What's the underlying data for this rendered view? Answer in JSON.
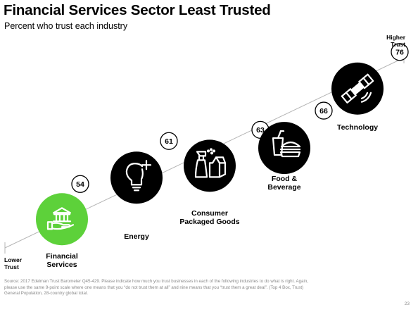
{
  "slide": {
    "title": "Financial Services Sector Least Trusted",
    "subtitle": "Percent who trust each industry",
    "axis_high": "Higher\nTrust",
    "axis_low": "Lower\nTrust",
    "source": "Source: 2017 Edelman Trust Barometer Q45-429. Please indicate how much you trust businesses in each of the following industries to do what is right. Again, please use the same 9-point scale where one means that you “do not trust them at all” and nine means that you “trust them a great deal”. (Top 4 Box, Trust) General Population, 28-country global total.",
    "page_number": "23"
  },
  "colors": {
    "highlight": "#5dd13a",
    "circle": "#000000",
    "line": "#b5b5b5"
  },
  "chart_data": {
    "type": "scatter",
    "title": "Financial Services Sector Least Trusted",
    "subtitle": "Percent who trust each industry",
    "categories": [
      "Financial\nServices",
      "Energy",
      "Consumer\nPackaged Goods",
      "Food &\nBeverage",
      "Technology"
    ],
    "values": [
      54,
      61,
      63,
      66,
      76
    ],
    "icons": [
      "bank-hand-icon",
      "lightbulb-plus-icon",
      "spray-bottle-milk-icon",
      "drink-burger-icon",
      "satellite-icon"
    ],
    "highlight_index": 0
  }
}
